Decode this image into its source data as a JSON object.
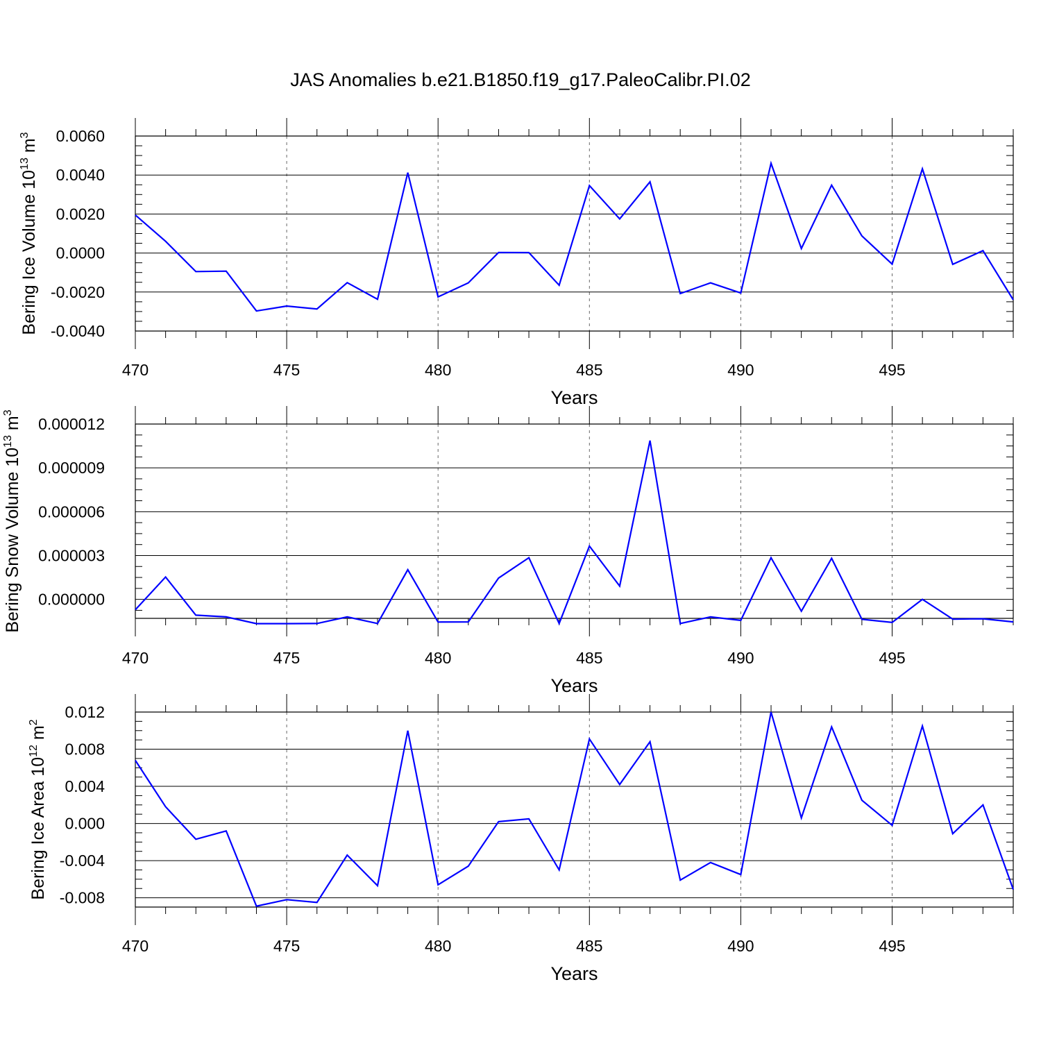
{
  "title": "JAS Anomalies b.e21.B1850.f19_g17.PaleoCalibr.PI.02",
  "line_color": "#0000ff",
  "chart_data": [
    {
      "type": "line",
      "title": "JAS Anomalies b.e21.B1850.f19_g17.PaleoCalibr.PI.02",
      "xlabel": "Years",
      "ylabel_parts": [
        "Bering Ice Volume 10",
        "13",
        " m",
        "3"
      ],
      "xlim": [
        470,
        499
      ],
      "ylim": [
        -0.004,
        0.006
      ],
      "x_ticks": [
        470,
        475,
        480,
        485,
        490,
        495
      ],
      "x_tick_labels": [
        "470",
        "475",
        "480",
        "485",
        "490",
        "495"
      ],
      "y_ticks": [
        -0.004,
        -0.002,
        0.0,
        0.002,
        0.004,
        0.006
      ],
      "y_tick_labels": [
        "-0.0040",
        "-0.0020",
        "0.0000",
        "0.0020",
        "0.0040",
        "0.0060"
      ],
      "y_minor_step": 0.0005,
      "x": [
        470,
        471,
        472,
        473,
        474,
        475,
        476,
        477,
        478,
        479,
        480,
        481,
        482,
        483,
        484,
        485,
        486,
        487,
        488,
        489,
        490,
        491,
        492,
        493,
        494,
        495,
        496,
        497,
        498,
        499
      ],
      "values": [
        0.00195,
        0.0006,
        -0.00095,
        -0.00093,
        -0.00297,
        -0.00272,
        -0.00287,
        -0.00152,
        -0.00237,
        0.00412,
        -0.00225,
        -0.00153,
        3e-05,
        2e-05,
        -0.00165,
        0.00346,
        0.00175,
        0.00365,
        -0.00208,
        -0.00153,
        -0.00205,
        0.0046,
        0.00023,
        0.00348,
        0.00088,
        -0.00057,
        0.00432,
        -0.00058,
        0.00012,
        -0.0024
      ]
    },
    {
      "type": "line",
      "xlabel": "Years",
      "ylabel_parts": [
        "Bering Snow Volume 10",
        "13",
        " m",
        "3"
      ],
      "xlim": [
        470,
        499
      ],
      "ylim": [
        -1.3e-06,
        1.2e-05
      ],
      "x_ticks": [
        470,
        475,
        480,
        485,
        490,
        495
      ],
      "x_tick_labels": [
        "470",
        "475",
        "480",
        "485",
        "490",
        "495"
      ],
      "y_ticks": [
        0.0,
        3e-06,
        6e-06,
        9e-06,
        1.2e-05
      ],
      "y_tick_labels": [
        "0.000000",
        "0.000003",
        "0.000006",
        "0.000009",
        "0.000012"
      ],
      "y_minor_step": 7.5e-07,
      "x": [
        470,
        471,
        472,
        473,
        474,
        475,
        476,
        477,
        478,
        479,
        480,
        481,
        482,
        483,
        484,
        485,
        486,
        487,
        488,
        489,
        490,
        491,
        492,
        493,
        494,
        495,
        496,
        497,
        498,
        499
      ],
      "values": [
        -7.1e-07,
        1.53e-06,
        -1.08e-06,
        -1.2e-06,
        -1.66e-06,
        -1.66e-06,
        -1.65e-06,
        -1.2e-06,
        -1.65e-06,
        2.03e-06,
        -1.55e-06,
        -1.54e-06,
        1.46e-06,
        2.85e-06,
        -1.65e-06,
        3.65e-06,
        9.1e-07,
        1.087e-05,
        -1.65e-06,
        -1.2e-06,
        -1.44e-06,
        2.85e-06,
        -8.1e-07,
        2.81e-06,
        -1.36e-06,
        -1.58e-06,
        0.0,
        -1.35e-06,
        -1.33e-06,
        -1.54e-06
      ]
    },
    {
      "type": "line",
      "xlabel": "Years",
      "ylabel_parts": [
        "Bering Ice Area 10",
        "12",
        " m",
        "2"
      ],
      "xlim": [
        470,
        499
      ],
      "ylim": [
        -0.009,
        0.012
      ],
      "x_ticks": [
        470,
        475,
        480,
        485,
        490,
        495
      ],
      "x_tick_labels": [
        "470",
        "475",
        "480",
        "485",
        "490",
        "495"
      ],
      "y_ticks": [
        -0.008,
        -0.004,
        0.0,
        0.004,
        0.008,
        0.012
      ],
      "y_tick_labels": [
        "-0.008",
        "-0.004",
        "0.000",
        "0.004",
        "0.008",
        "0.012"
      ],
      "y_minor_step": 0.001,
      "x": [
        470,
        471,
        472,
        473,
        474,
        475,
        476,
        477,
        478,
        479,
        480,
        481,
        482,
        483,
        484,
        485,
        486,
        487,
        488,
        489,
        490,
        491,
        492,
        493,
        494,
        495,
        496,
        497,
        498,
        499
      ],
      "values": [
        0.0068,
        0.0018,
        -0.0017,
        -0.0008,
        -0.0089,
        -0.0082,
        -0.0085,
        -0.0034,
        -0.0067,
        0.01,
        -0.0066,
        -0.0046,
        0.0002,
        0.0005,
        -0.005,
        0.0091,
        0.0042,
        0.0088,
        -0.0061,
        -0.0042,
        -0.0055,
        0.012,
        0.0006,
        0.0104,
        0.0025,
        -0.0002,
        0.0105,
        -0.0011,
        0.002,
        -0.0071
      ]
    }
  ]
}
